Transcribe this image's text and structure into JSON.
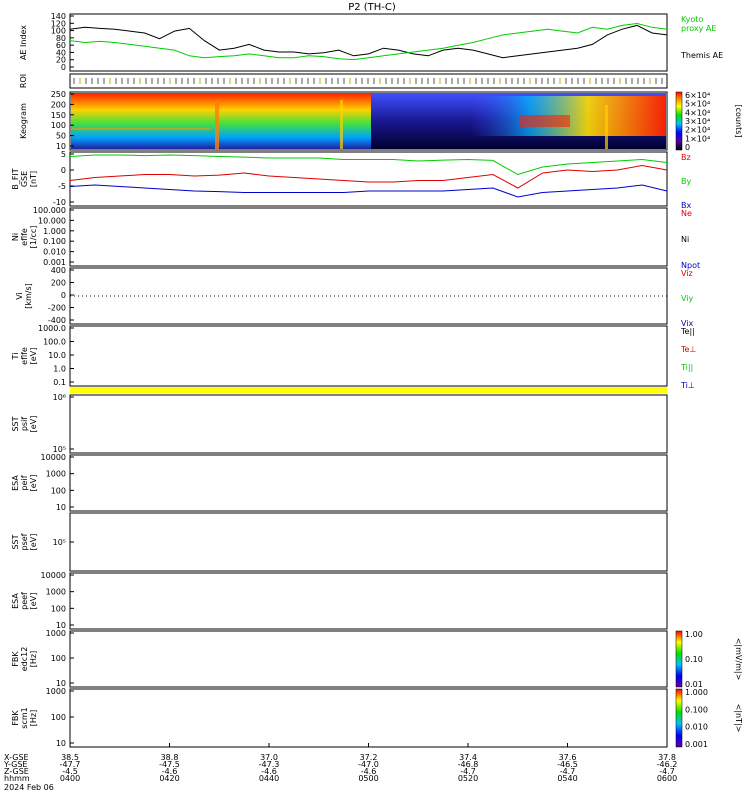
{
  "title": "P2 (TH-C)",
  "colors": {
    "red": "#dd0000",
    "green": "#00cc00",
    "blue": "#0000cc",
    "black": "#000000",
    "yellow": "#ffff00"
  },
  "panels": {
    "ae": {
      "ylabel": "AE Index",
      "ticks": [
        "140",
        "120",
        "100",
        "80",
        "60",
        "40",
        "20",
        "0"
      ],
      "right_labels": [
        {
          "text": "Kyoto",
          "color": "green"
        },
        {
          "text": "proxy AE",
          "color": "green"
        },
        {
          "text": "Themis AE",
          "color": "black"
        }
      ]
    },
    "roi": {
      "ylabel": "ROI"
    },
    "keogram": {
      "ylabel": "Keogram",
      "ticks": [
        "250",
        "200",
        "150",
        "100",
        "50",
        "10"
      ],
      "colorbar_unit": "[counts]",
      "colorbar_ticks": [
        "6×10⁴",
        "5×10⁴",
        "4×10⁴",
        "3×10⁴",
        "2×10⁴",
        "1×10⁴",
        "0"
      ]
    },
    "bfield": {
      "ylabel": [
        "B_FIT",
        "GSE",
        "[nT]"
      ],
      "ticks": [
        "5",
        "0",
        "-5",
        "-10"
      ],
      "right_labels": [
        {
          "text": "Bz",
          "color": "red"
        },
        {
          "text": "By",
          "color": "green"
        },
        {
          "text": "Bx",
          "color": "blue"
        }
      ]
    },
    "density": {
      "ylabel": [
        "Ni",
        "eflfe",
        "[1/cc]"
      ],
      "ticks": [
        "100.000",
        "10.000",
        "1.000",
        "0.100",
        "0.010",
        "0.001"
      ],
      "right_labels": [
        {
          "text": "Ne",
          "color": "red"
        },
        {
          "text": "Ni",
          "color": "black"
        },
        {
          "text": "Npot",
          "color": "blue"
        }
      ]
    },
    "velocity": {
      "ylabel": [
        "Vi",
        "[km/s]"
      ],
      "ticks": [
        "400",
        "200",
        "0",
        "-200",
        "-400"
      ],
      "right_labels": [
        {
          "text": "Viz",
          "color": "red"
        },
        {
          "text": "Viy",
          "color": "green"
        },
        {
          "text": "Vix",
          "color": "blue"
        }
      ]
    },
    "temperature": {
      "ylabel": [
        "Ti",
        "eflfe",
        "[eV]"
      ],
      "ticks": [
        "1000.0",
        "100.0",
        "10.0",
        "1.0",
        "0.1"
      ],
      "right_labels": [
        {
          "text": "Te||",
          "color": "black"
        },
        {
          "text": "Te⊥",
          "color": "red"
        },
        {
          "text": "Ti||",
          "color": "green"
        },
        {
          "text": "Ti⊥",
          "color": "blue"
        }
      ]
    },
    "sst_ion": {
      "ylabel": [
        "SST",
        "psif",
        "[eV]"
      ],
      "ticks": [
        "10⁶",
        "10⁵"
      ]
    },
    "esa_ion": {
      "ylabel": [
        "ESA",
        "peif",
        "[eV]"
      ],
      "ticks": [
        "10000",
        "1000",
        "100",
        "10"
      ]
    },
    "sst_elec": {
      "ylabel": [
        "SST",
        "psef",
        "[eV]"
      ],
      "ticks": [
        "10⁵"
      ]
    },
    "esa_elec": {
      "ylabel": [
        "ESA",
        "peef",
        "[eV]"
      ],
      "ticks": [
        "10000",
        "1000",
        "100",
        "10"
      ]
    },
    "fbk_e": {
      "ylabel": [
        "FBK",
        "edc12",
        "[Hz]"
      ],
      "ticks": [
        "1000",
        "100",
        "10"
      ],
      "colorbar_unit": "<|mV/m|>",
      "colorbar_ticks": [
        "1.00",
        "0.10",
        "0.01"
      ]
    },
    "fbk_b": {
      "ylabel": [
        "FBK",
        "scm1",
        "[Hz]"
      ],
      "ticks": [
        "1000",
        "100",
        "10"
      ],
      "colorbar_unit": "<|nT|>",
      "colorbar_ticks": [
        "1.000",
        "0.100",
        "0.010",
        "0.001"
      ]
    }
  },
  "xaxis": {
    "row_labels": [
      "X-GSE",
      "Y-GSE",
      "Z-GSE",
      "hhmm",
      "2024 Feb 06"
    ],
    "columns": [
      {
        "x": "38.5",
        "y": "-47.7",
        "z": "-4.5",
        "t": "0400"
      },
      {
        "x": "38.8",
        "y": "-47.5",
        "z": "-4.6",
        "t": "0420"
      },
      {
        "x": "37.0",
        "y": "-47.3",
        "z": "-4.6",
        "t": "0440"
      },
      {
        "x": "37.2",
        "y": "-47.0",
        "z": "-4.6",
        "t": "0500"
      },
      {
        "x": "37.4",
        "y": "-46.8",
        "z": "-4.7",
        "t": "0520"
      },
      {
        "x": "37.6",
        "y": "-46.5",
        "z": "-4.7",
        "t": "0540"
      },
      {
        "x": "37.8",
        "y": "-46.2",
        "z": "-4.7",
        "t": "0600"
      }
    ]
  },
  "chart_data": {
    "type": "line",
    "title": "P2 (TH-C)",
    "x_unit": "hhmm",
    "x_range": [
      "0400",
      "0600"
    ],
    "ae_series": [
      {
        "name": "Themis AE",
        "color": "black",
        "x": [
          0,
          3,
          6,
          9,
          12,
          15,
          18,
          21,
          24,
          27,
          30,
          33,
          36,
          39,
          42,
          45,
          48,
          51,
          54,
          57,
          60,
          63,
          66,
          69,
          72,
          75,
          78,
          81,
          84,
          87,
          90,
          93,
          96,
          99,
          102,
          105,
          108,
          111,
          114,
          117,
          120
        ],
        "y": [
          110,
          115,
          112,
          110,
          105,
          100,
          85,
          105,
          112,
          80,
          55,
          60,
          70,
          55,
          50,
          50,
          45,
          48,
          55,
          40,
          45,
          60,
          55,
          45,
          40,
          55,
          60,
          55,
          45,
          35,
          40,
          45,
          50,
          55,
          60,
          70,
          95,
          110,
          120,
          100,
          95
        ]
      },
      {
        "name": "Kyoto proxy AE",
        "color": "green",
        "x": [
          0,
          3,
          6,
          9,
          12,
          15,
          18,
          21,
          24,
          27,
          30,
          33,
          36,
          39,
          42,
          45,
          48,
          51,
          54,
          57,
          60,
          63,
          66,
          69,
          72,
          75,
          78,
          81,
          84,
          87,
          90,
          93,
          96,
          99,
          102,
          105,
          108,
          111,
          114,
          117,
          120
        ],
        "y": [
          80,
          75,
          78,
          75,
          70,
          65,
          60,
          55,
          40,
          35,
          38,
          40,
          45,
          40,
          35,
          35,
          40,
          38,
          32,
          30,
          35,
          40,
          45,
          50,
          55,
          60,
          68,
          75,
          85,
          95,
          100,
          105,
          110,
          105,
          100,
          115,
          110,
          120,
          125,
          115,
          110
        ]
      }
    ],
    "b_series": [
      {
        "name": "Bz",
        "color": "red",
        "x": [
          0,
          5,
          10,
          15,
          20,
          25,
          30,
          35,
          40,
          45,
          50,
          55,
          60,
          65,
          70,
          75,
          80,
          85,
          90,
          95,
          100,
          105,
          110,
          115,
          120
        ],
        "y": [
          -1.5,
          -0.5,
          0,
          0.5,
          0.5,
          0,
          0.3,
          1,
          0,
          -0.5,
          -1,
          -1.5,
          -2,
          -2,
          -1.5,
          -1.5,
          -0.5,
          0.5,
          -4,
          1,
          2,
          1.5,
          2,
          3.5,
          2
        ]
      },
      {
        "name": "By",
        "color": "green",
        "x": [
          0,
          5,
          10,
          15,
          20,
          25,
          30,
          35,
          40,
          45,
          50,
          55,
          60,
          65,
          70,
          75,
          80,
          85,
          90,
          95,
          100,
          105,
          110,
          115,
          120
        ],
        "y": [
          6.5,
          7,
          7,
          6.8,
          7,
          6.8,
          6.5,
          6.3,
          6,
          6,
          6,
          5.5,
          5.5,
          5.5,
          5,
          5.3,
          5.5,
          5.2,
          0.5,
          3,
          4,
          4.5,
          5,
          5.5,
          4.5
        ]
      },
      {
        "name": "Bx",
        "color": "blue",
        "x": [
          0,
          5,
          10,
          15,
          20,
          25,
          30,
          35,
          40,
          45,
          50,
          55,
          60,
          65,
          70,
          75,
          80,
          85,
          90,
          95,
          100,
          105,
          110,
          115,
          120
        ],
        "y": [
          -3.5,
          -3,
          -3.5,
          -4,
          -4.5,
          -5,
          -5.2,
          -5.5,
          -5.5,
          -5.5,
          -5.5,
          -5.5,
          -5,
          -5,
          -5,
          -5,
          -4.5,
          -4,
          -7,
          -5.5,
          -5,
          -4.5,
          -4,
          -3,
          -5
        ]
      }
    ],
    "b_ylim": [
      -10,
      8
    ],
    "ae_ylim": [
      0,
      150
    ],
    "keogram_ylim": [
      0,
      256
    ]
  }
}
